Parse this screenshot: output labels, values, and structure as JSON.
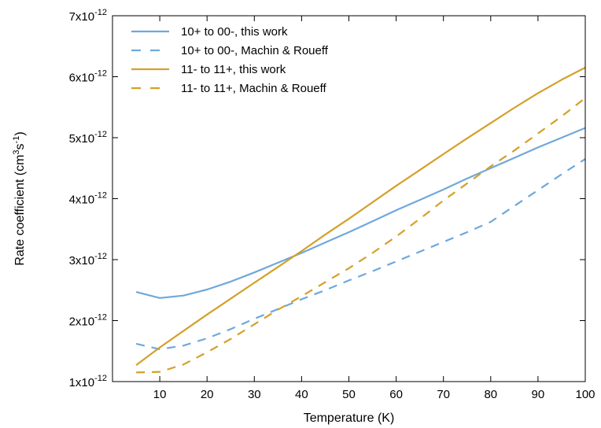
{
  "chart_data": {
    "type": "line",
    "title": "",
    "xlabel": "Temperature (K)",
    "ylabel": {
      "base": "Rate coefficient (cm",
      "sup1": "3",
      "mid": "s",
      "sup2": "-1",
      "end": ")"
    },
    "xlim": [
      0,
      100
    ],
    "ylim": [
      1e-12,
      7e-12
    ],
    "x_ticks": [
      10,
      20,
      30,
      40,
      50,
      60,
      70,
      80,
      90,
      100
    ],
    "y_ticks": [
      {
        "value": 1e-12,
        "mantissa": "1x10",
        "exp": "-12"
      },
      {
        "value": 2e-12,
        "mantissa": "2x10",
        "exp": "-12"
      },
      {
        "value": 3e-12,
        "mantissa": "3x10",
        "exp": "-12"
      },
      {
        "value": 4e-12,
        "mantissa": "4x10",
        "exp": "-12"
      },
      {
        "value": 5e-12,
        "mantissa": "5x10",
        "exp": "-12"
      },
      {
        "value": 6e-12,
        "mantissa": "6x10",
        "exp": "-12"
      },
      {
        "value": 7e-12,
        "mantissa": "7x10",
        "exp": "-12"
      }
    ],
    "grid": false,
    "legend_position": "top-left",
    "series": [
      {
        "name": "10+ to 00-, this work",
        "color": "#6fa8dc",
        "dash": "solid",
        "x": [
          5,
          10,
          15,
          20,
          25,
          30,
          35,
          40,
          45,
          50,
          55,
          60,
          65,
          70,
          75,
          80,
          85,
          90,
          95,
          100
        ],
        "y": [
          2.47e-12,
          2.37e-12,
          2.41e-12,
          2.51e-12,
          2.64e-12,
          2.79e-12,
          2.95e-12,
          3.11e-12,
          3.28e-12,
          3.45e-12,
          3.63e-12,
          3.81e-12,
          3.98e-12,
          4.15e-12,
          4.33e-12,
          4.5e-12,
          4.67e-12,
          4.84e-12,
          5e-12,
          5.16e-12
        ]
      },
      {
        "name": "10+ to 00-, Machin & Roueff",
        "color": "#6fa8dc",
        "dash": "dashed",
        "x": [
          5,
          10,
          15,
          20,
          25,
          30,
          35,
          40,
          45,
          50,
          55,
          60,
          65,
          70,
          75,
          80,
          85,
          90,
          95,
          100
        ],
        "y": [
          1.62e-12,
          1.53e-12,
          1.59e-12,
          1.71e-12,
          1.86e-12,
          2.03e-12,
          2.19e-12,
          2.35e-12,
          2.5e-12,
          2.66e-12,
          2.81e-12,
          2.97e-12,
          3.13e-12,
          3.29e-12,
          3.45e-12,
          3.62e-12,
          3.88e-12,
          4.14e-12,
          4.4e-12,
          4.65e-12
        ]
      },
      {
        "name": "11- to 11+, this work",
        "color": "#d4a02a",
        "dash": "solid",
        "x": [
          5,
          10,
          15,
          20,
          25,
          30,
          35,
          40,
          45,
          50,
          55,
          60,
          65,
          70,
          75,
          80,
          85,
          90,
          95,
          100
        ],
        "y": [
          1.27e-12,
          1.56e-12,
          1.83e-12,
          2.1e-12,
          2.36e-12,
          2.62e-12,
          2.88e-12,
          3.14e-12,
          3.41e-12,
          3.67e-12,
          3.94e-12,
          4.21e-12,
          4.47e-12,
          4.73e-12,
          4.99e-12,
          5.24e-12,
          5.49e-12,
          5.73e-12,
          5.95e-12,
          6.15e-12
        ]
      },
      {
        "name": "11- to 11+, Machin & Roueff",
        "color": "#d4a02a",
        "dash": "dashed",
        "x": [
          5,
          10,
          15,
          20,
          25,
          30,
          35,
          40,
          45,
          50,
          55,
          60,
          65,
          70,
          75,
          80,
          85,
          90,
          95,
          100
        ],
        "y": [
          1.15e-12,
          1.16e-12,
          1.28e-12,
          1.48e-12,
          1.7e-12,
          1.94e-12,
          2.18e-12,
          2.4e-12,
          2.63e-12,
          2.86e-12,
          3.11e-12,
          3.38e-12,
          3.67e-12,
          3.97e-12,
          4.25e-12,
          4.53e-12,
          4.79e-12,
          5.07e-12,
          5.35e-12,
          5.65e-12
        ]
      }
    ]
  }
}
